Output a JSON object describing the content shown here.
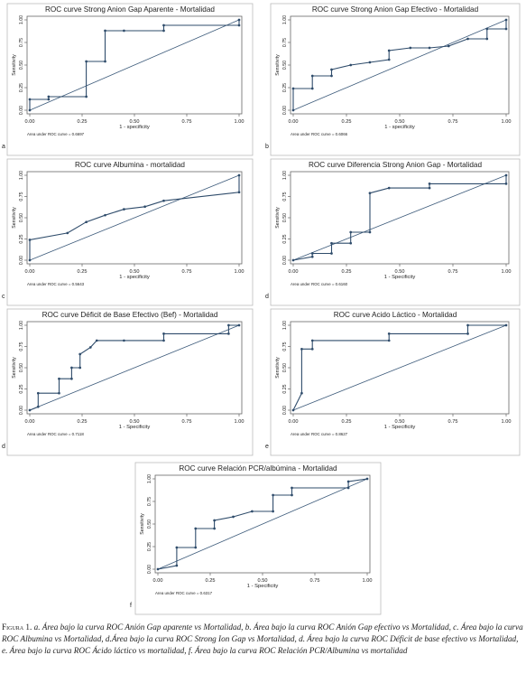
{
  "chart_data": [
    {
      "type": "line",
      "panel_letter": "a",
      "title": "ROC curve Strong Anion Gap Aparente - Mortalidad",
      "xlabel": "1 - specificity",
      "ylabel": "Sensitivity",
      "xlim": [
        0,
        1
      ],
      "ylim": [
        0,
        1
      ],
      "xticks": [
        "0.00",
        "0.25",
        "0.50",
        "0.75",
        "1.00"
      ],
      "yticks": [
        "0.00",
        "0.25",
        "0.50",
        "0.75",
        "1.00"
      ],
      "area_label": "Area under ROC curve = 0.6697",
      "series": [
        {
          "x": [
            0,
            0,
            0.09,
            0.09,
            0.27,
            0.27,
            0.36,
            0.36,
            0.45,
            0.64,
            0.64,
            1.0,
            1.0
          ],
          "y": [
            0,
            0.12,
            0.12,
            0.15,
            0.15,
            0.54,
            0.54,
            0.88,
            0.88,
            0.88,
            0.94,
            0.94,
            1.0
          ]
        }
      ]
    },
    {
      "type": "line",
      "panel_letter": "b",
      "title": "ROC curve Strong Anion Gap Efectivo - Mortalidad",
      "xlabel": "1 - specificity",
      "ylabel": "Sensitivity",
      "xlim": [
        0,
        1
      ],
      "ylim": [
        0,
        1
      ],
      "xticks": [
        "0.00",
        "0.25",
        "0.50",
        "0.75",
        "1.00"
      ],
      "yticks": [
        "0.00",
        "0.25",
        "0.50",
        "0.75",
        "1.00"
      ],
      "area_label": "Area under ROC curve = 0.6066",
      "series": [
        {
          "x": [
            0,
            0,
            0.09,
            0.09,
            0.18,
            0.18,
            0.27,
            0.36,
            0.45,
            0.45,
            0.55,
            0.64,
            0.73,
            0.82,
            0.91,
            0.91,
            1.0,
            1.0
          ],
          "y": [
            0,
            0.24,
            0.24,
            0.38,
            0.38,
            0.45,
            0.5,
            0.53,
            0.56,
            0.66,
            0.69,
            0.69,
            0.71,
            0.79,
            0.79,
            0.9,
            0.9,
            1.0
          ]
        }
      ]
    },
    {
      "type": "line",
      "panel_letter": "c",
      "title": "ROC curve Albumina - mortalidad",
      "xlabel": "1 - specificity",
      "ylabel": "Sensitivity",
      "xlim": [
        0,
        1
      ],
      "ylim": [
        0,
        1
      ],
      "xticks": [
        "0.00",
        "0.25",
        "0.50",
        "0.75",
        "1.00"
      ],
      "yticks": [
        "0.00",
        "0.25",
        "0.50",
        "0.75",
        "1.00"
      ],
      "area_label": "Area under ROC curve = 0.5643",
      "series": [
        {
          "x": [
            0,
            0,
            0.18,
            0.27,
            0.36,
            0.45,
            0.55,
            0.64,
            1.0,
            1.0
          ],
          "y": [
            0,
            0.24,
            0.32,
            0.45,
            0.53,
            0.6,
            0.63,
            0.7,
            0.8,
            1.0
          ]
        }
      ]
    },
    {
      "type": "line",
      "panel_letter": "d",
      "title": "ROC curve Diferencia Strong Anion Gap - Mortalidad",
      "xlabel": "1 - Specificity",
      "ylabel": "Sensitivity",
      "xlim": [
        0,
        1
      ],
      "ylim": [
        0,
        1
      ],
      "xticks": [
        "0.00",
        "0.25",
        "0.50",
        "0.75",
        "1.00"
      ],
      "yticks": [
        "0.00",
        "0.25",
        "0.50",
        "0.75",
        "1.00"
      ],
      "area_label": "Area under ROC curve = 0.6160",
      "series": [
        {
          "x": [
            0,
            0.09,
            0.09,
            0.18,
            0.18,
            0.27,
            0.27,
            0.36,
            0.36,
            0.45,
            0.64,
            0.64,
            1.0,
            1.0
          ],
          "y": [
            0,
            0.04,
            0.08,
            0.08,
            0.2,
            0.2,
            0.33,
            0.33,
            0.79,
            0.85,
            0.85,
            0.9,
            0.9,
            1.0
          ]
        }
      ]
    },
    {
      "type": "line",
      "panel_letter": "d",
      "title": "ROC curve Déficit de Base Efectivo (Bef) - Mortalidad",
      "xlabel": "1 - Specificity",
      "ylabel": "Sensitivity",
      "xlim": [
        0,
        1
      ],
      "ylim": [
        0,
        1
      ],
      "xticks": [
        "0.00",
        "0.25",
        "0.50",
        "0.75",
        "1.00"
      ],
      "yticks": [
        "0.00",
        "0.25",
        "0.50",
        "0.75",
        "1.00"
      ],
      "area_label": "Area under ROC curve = 0.7118",
      "series": [
        {
          "x": [
            0,
            0.04,
            0.04,
            0.14,
            0.14,
            0.2,
            0.2,
            0.24,
            0.24,
            0.29,
            0.32,
            0.45,
            0.64,
            0.64,
            0.95,
            0.95,
            1.0
          ],
          "y": [
            0,
            0.04,
            0.2,
            0.2,
            0.37,
            0.37,
            0.5,
            0.5,
            0.66,
            0.74,
            0.82,
            0.82,
            0.82,
            0.9,
            0.9,
            1.0,
            1.0
          ]
        }
      ]
    },
    {
      "type": "line",
      "panel_letter": "e",
      "title": "ROC curve Acido Láctico - Mortalidad",
      "xlabel": "1 - Specificity",
      "ylabel": "Sensitivity",
      "xlim": [
        0,
        1
      ],
      "ylim": [
        0,
        1
      ],
      "xticks": [
        "0.00",
        "0.25",
        "0.50",
        "0.75",
        "1.00"
      ],
      "yticks": [
        "0.00",
        "0.25",
        "0.50",
        "0.75",
        "1.00"
      ],
      "area_label": "Area under ROC curve = 0.8627",
      "series": [
        {
          "x": [
            0,
            0.04,
            0.04,
            0.09,
            0.09,
            0.45,
            0.45,
            0.82,
            0.82,
            1.0
          ],
          "y": [
            0,
            0.2,
            0.72,
            0.72,
            0.82,
            0.82,
            0.9,
            0.9,
            1.0,
            1.0
          ]
        }
      ]
    },
    {
      "type": "line",
      "panel_letter": "f",
      "title": "ROC curve Relación PCR/albúmina - Mortalidad",
      "xlabel": "1 - Specificity",
      "ylabel": "Sensitivity",
      "xlim": [
        0,
        1
      ],
      "ylim": [
        0,
        1
      ],
      "xticks": [
        "0.00",
        "0.25",
        "0.50",
        "0.75",
        "1.00"
      ],
      "yticks": [
        "0.00",
        "0.25",
        "0.50",
        "0.75",
        "1.00"
      ],
      "area_label": "Area under ROC curve = 0.6317",
      "series": [
        {
          "x": [
            0,
            0.09,
            0.09,
            0.18,
            0.18,
            0.27,
            0.27,
            0.36,
            0.45,
            0.55,
            0.55,
            0.64,
            0.64,
            0.91,
            0.91,
            1.0
          ],
          "y": [
            0,
            0.04,
            0.24,
            0.24,
            0.45,
            0.45,
            0.54,
            0.58,
            0.64,
            0.64,
            0.82,
            0.82,
            0.9,
            0.9,
            0.97,
            1.0
          ]
        }
      ]
    }
  ],
  "caption": {
    "label": "Figura 1.",
    "text": "a. Área bajo la curva ROC Anión Gap aparente vs Mortalidad, b. Área bajo la curva ROC Anión Gap efectivo vs Mortalidad, c. Área bajo la curva ROC Albumina vs Mortalidad, d.Área bajo la curva ROC Strong Ion Gap vs Mortalidad, d. Área bajo la curva ROC Déficit de base efectivo vs Mortalidad, e. Área bajo la curva ROC Ácido láctico vs mortalidad, f. Área bajo la curva ROC Relación PCR/Albumina vs mortalidad"
  },
  "colors": {
    "curve": "#2f4c6b",
    "reference_line": "#3c5a7a",
    "frame": "#666666",
    "text": "#222222"
  }
}
